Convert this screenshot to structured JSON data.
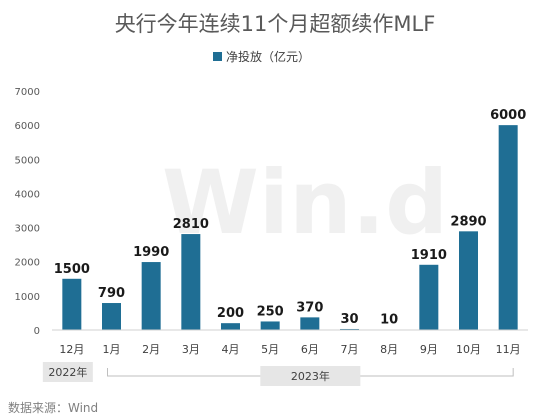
{
  "chart_data": {
    "type": "bar",
    "title": "央行今年连续11个月超额续作MLF",
    "categories": [
      "12月",
      "1月",
      "2月",
      "3月",
      "4月",
      "5月",
      "6月",
      "7月",
      "8月",
      "9月",
      "10月",
      "11月"
    ],
    "series": [
      {
        "name": "净投放（亿元）",
        "values": [
          1500,
          790,
          1990,
          2810,
          200,
          250,
          370,
          30,
          10,
          1910,
          2890,
          6000
        ]
      }
    ],
    "ylim": [
      0,
      7000
    ],
    "yticks": [
      0,
      1000,
      2000,
      3000,
      4000,
      5000,
      6000,
      7000
    ],
    "grid": false,
    "legend": "top",
    "year_groups": [
      {
        "label": "2022年",
        "span": [
          0,
          0
        ]
      },
      {
        "label": "2023年",
        "span": [
          1,
          11
        ]
      }
    ],
    "bar_color": "#1f6e94",
    "watermark": "Win.d"
  },
  "source": "数据来源：Wind"
}
